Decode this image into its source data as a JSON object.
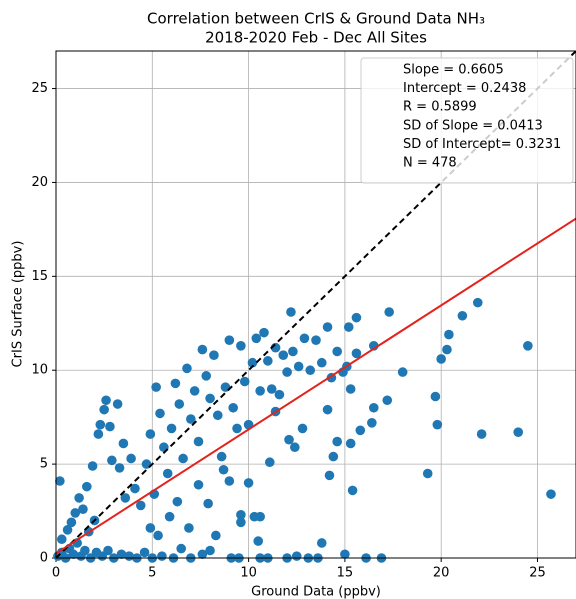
{
  "chart_data": {
    "type": "scatter",
    "title": "Correlation between CrIS & Ground Data NH₃",
    "subtitle": "2018-2020 Feb - Dec All Sites",
    "x_label": "Ground Data (ppbv)",
    "y_label": "CrIS Surface (ppbv)",
    "color": "#1f77b4",
    "xlim": [
      0,
      27
    ],
    "ylim": [
      0,
      27
    ],
    "xticks": [
      0,
      5,
      10,
      15,
      20,
      25
    ],
    "yticks": [
      0,
      5,
      10,
      15,
      20,
      25
    ],
    "grid": true,
    "fit": {
      "slope": 0.6605,
      "intercept": 0.2438,
      "color": "#e3231c"
    },
    "one_to_one": {
      "color": "#000000"
    },
    "annotations": [
      "Slope = 0.6605",
      "Intercept = 0.2438",
      "R = 0.5899",
      "SD of Slope = 0.0413",
      "SD of Intercept= 0.3231",
      "N = 478"
    ],
    "x": [
      0.1,
      0.3,
      0.5,
      0.7,
      0.9,
      1.1,
      1.3,
      1.5,
      1.8,
      2.1,
      2.4,
      2.7,
      3.0,
      3.4,
      3.8,
      4.2,
      4.6,
      5.0,
      5.5,
      6.1,
      6.5,
      7.0,
      7.6,
      9.1,
      9.5,
      10.6,
      11.0,
      12.5,
      13.1,
      13.6,
      15.0,
      16.1,
      16.9,
      13.8,
      12.0,
      0.2,
      0.3,
      0.6,
      0.8,
      1.0,
      1.2,
      1.4,
      1.6,
      1.7,
      1.9,
      2.0,
      2.2,
      2.3,
      2.5,
      2.6,
      2.8,
      2.9,
      3.2,
      3.3,
      3.5,
      3.6,
      3.9,
      4.1,
      4.4,
      4.7,
      4.9,
      5.1,
      5.2,
      5.4,
      5.6,
      5.8,
      6.0,
      6.2,
      6.4,
      6.6,
      6.8,
      7.0,
      7.2,
      7.4,
      7.6,
      7.8,
      8.0,
      8.2,
      8.4,
      8.6,
      8.8,
      9.0,
      9.2,
      9.4,
      9.6,
      9.8,
      10.0,
      10.2,
      10.4,
      10.6,
      10.8,
      11.0,
      11.2,
      11.4,
      11.6,
      11.8,
      12.0,
      12.3,
      12.6,
      12.9,
      13.2,
      13.5,
      13.8,
      14.1,
      14.3,
      14.6,
      14.9,
      15.1,
      15.3,
      15.6,
      17.3,
      18.0,
      19.3,
      19.7,
      19.8,
      20.0,
      20.3,
      20.4,
      21.1,
      21.9,
      22.1,
      24.0,
      24.5,
      25.7,
      16.5,
      16.5,
      16.4,
      17.2,
      15.6,
      15.2,
      15.4,
      15.3,
      15.8,
      14.2,
      14.4,
      14.6,
      14.1,
      12.2,
      12.8,
      12.4,
      12.1,
      11.4,
      11.1,
      10.6,
      10.3,
      10.5,
      10.0,
      9.6,
      9.6,
      9.0,
      8.3,
      8.0,
      7.9,
      6.9,
      6.3,
      5.9,
      5.3,
      4.9,
      7.4,
      8.7
    ],
    "values": [
      0.1,
      0.3,
      0.0,
      0.5,
      0.2,
      0.8,
      0.1,
      0.4,
      0.0,
      0.3,
      0.1,
      0.4,
      0.0,
      0.2,
      0.1,
      0.0,
      0.3,
      0.0,
      0.1,
      0.0,
      0.5,
      0.0,
      0.2,
      0.0,
      0.0,
      0.0,
      0.0,
      0.1,
      0.0,
      0.0,
      0.2,
      0.0,
      0.0,
      0.8,
      0.0,
      4.1,
      1.0,
      1.5,
      1.9,
      2.4,
      3.2,
      2.6,
      3.8,
      1.4,
      4.9,
      2.0,
      6.6,
      7.1,
      7.9,
      8.4,
      7.0,
      5.2,
      8.2,
      4.8,
      6.1,
      3.2,
      5.3,
      3.7,
      2.8,
      5.0,
      6.6,
      3.4,
      9.1,
      7.7,
      5.9,
      4.5,
      6.9,
      9.3,
      8.2,
      5.3,
      10.1,
      7.4,
      8.9,
      6.2,
      11.1,
      9.7,
      8.5,
      10.8,
      7.6,
      5.4,
      9.1,
      11.6,
      8.0,
      6.9,
      11.3,
      9.4,
      7.1,
      10.4,
      11.7,
      8.9,
      12.0,
      10.5,
      9.0,
      11.2,
      8.7,
      10.8,
      9.9,
      11.0,
      10.2,
      11.7,
      10.0,
      11.6,
      10.4,
      12.3,
      9.6,
      11.0,
      9.9,
      10.2,
      9.0,
      10.9,
      13.1,
      9.9,
      4.5,
      8.6,
      7.1,
      10.6,
      11.1,
      11.9,
      12.9,
      13.6,
      6.6,
      6.7,
      11.3,
      3.4,
      11.3,
      8.0,
      7.2,
      8.4,
      12.8,
      12.3,
      3.6,
      6.1,
      6.8,
      4.4,
      5.4,
      6.2,
      7.9,
      13.1,
      6.9,
      5.9,
      6.3,
      7.8,
      5.1,
      2.2,
      2.2,
      0.9,
      4.0,
      2.3,
      1.9,
      4.1,
      1.2,
      0.4,
      2.9,
      1.6,
      3.0,
      2.2,
      1.2,
      1.6,
      3.9,
      4.7
    ]
  }
}
